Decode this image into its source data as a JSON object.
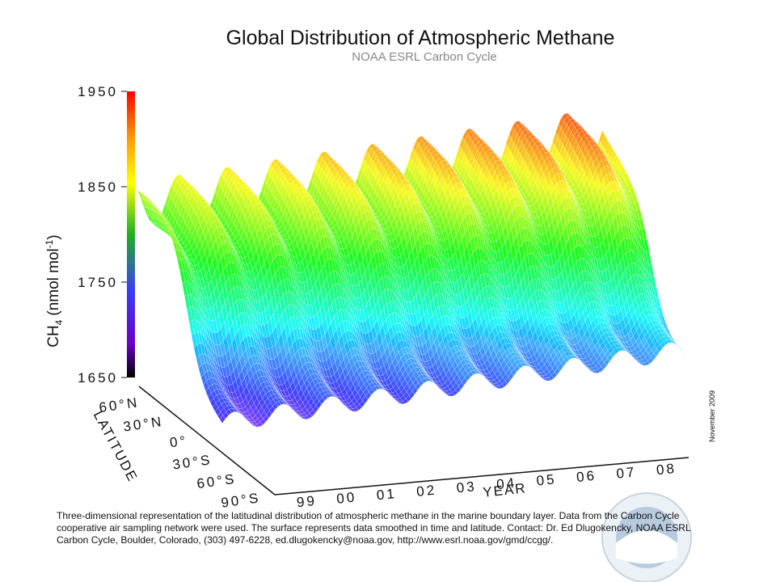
{
  "chart_data": {
    "type": "surface",
    "title": "Global Distribution of Atmospheric Methane",
    "subtitle": "NOAA ESRL Carbon Cycle",
    "zlabel": {
      "main": "CH",
      "sub": "4",
      "unit": "(nmol mol",
      "sup": "-1",
      "close": ")"
    },
    "zlim": [
      1650,
      1950
    ],
    "zticks": [
      1650,
      1750,
      1850,
      1950
    ],
    "latitude_label": "LATITUDE",
    "latitudes": [
      "60°N",
      "30°N",
      "0°",
      "30°S",
      "60°S",
      "90°S"
    ],
    "year_label": "YEAR",
    "years": [
      "99",
      "00",
      "01",
      "02",
      "03",
      "04",
      "05",
      "06",
      "07",
      "08"
    ],
    "date": "November 2009",
    "caption": [
      "Three-dimensional representation of the latitudinal distribution of atmospheric methane in the marine boundary layer.  Data from the Carbon Cycle",
      "cooperative air sampling network were used.  The surface represents data smoothed in time and latitude.  Contact:  Dr. Ed Dlugokencky, NOAA ESRL",
      "Carbon Cycle, Boulder, Colorado, (303) 497-6228, ed.dlugokencky@noaa.gov, http://www.esrl.noaa.gov/gmd/ccgg/."
    ]
  }
}
